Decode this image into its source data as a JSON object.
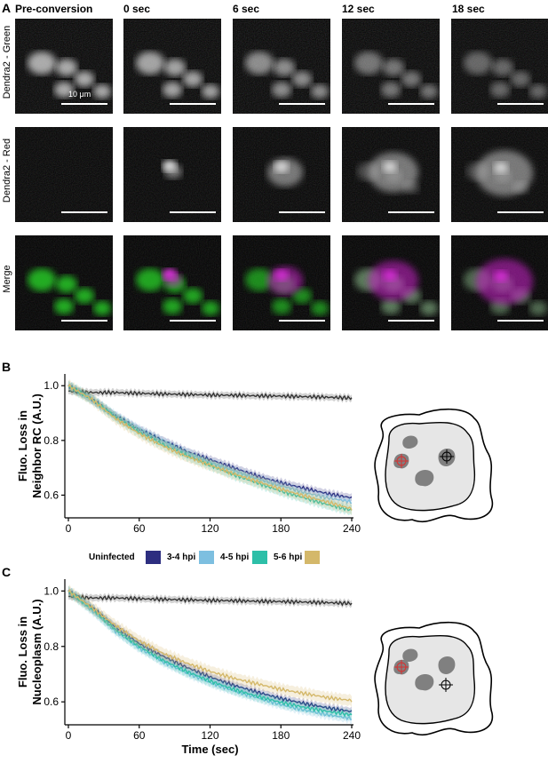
{
  "panel_a": {
    "letter": "A",
    "timepoints": [
      "Pre-conversion",
      "0 sec",
      "6 sec",
      "12 sec",
      "18 sec"
    ],
    "rows": [
      "Dendra2 - Green",
      "Dendra2 - Red",
      "Merge"
    ],
    "scale_label": "10 μm"
  },
  "panel_b": {
    "letter": "B"
  },
  "panel_c": {
    "letter": "C"
  },
  "legend": {
    "entries": [
      {
        "label": "Uninfected",
        "color": "#333333"
      },
      {
        "label": "3-4 hpi",
        "color": "#2d2e80"
      },
      {
        "label": "4-5 hpi",
        "color": "#7dbfe0"
      },
      {
        "label": "5-6 hpi",
        "color": "#2dbfa8"
      },
      {
        "label": "",
        "color": "#d4b86a"
      }
    ]
  },
  "chart_data": [
    {
      "type": "line",
      "panel": "B",
      "ylabel": "Fluo. Loss in Neighbor RC (A.U.)",
      "xlabel": "",
      "xlim": [
        0,
        240
      ],
      "ylim": [
        0.53,
        1.03
      ],
      "xticks": [
        0,
        60,
        120,
        180,
        240
      ],
      "yticks": [
        0.6,
        0.8,
        1.0
      ],
      "x": [
        0,
        20,
        40,
        60,
        80,
        100,
        120,
        140,
        160,
        180,
        200,
        220,
        240
      ],
      "series": [
        {
          "name": "Uninfected",
          "color": "#333333",
          "values": [
            0.98,
            0.975,
            0.975,
            0.972,
            0.97,
            0.968,
            0.966,
            0.965,
            0.963,
            0.962,
            0.96,
            0.958,
            0.955
          ]
        },
        {
          "name": "3-4 hpi",
          "color": "#2d2e80",
          "values": [
            1.0,
            0.95,
            0.89,
            0.84,
            0.8,
            0.76,
            0.73,
            0.7,
            0.67,
            0.645,
            0.625,
            0.605,
            0.59
          ]
        },
        {
          "name": "4-5 hpi",
          "color": "#7dbfe0",
          "values": [
            1.0,
            0.95,
            0.89,
            0.84,
            0.795,
            0.755,
            0.72,
            0.69,
            0.66,
            0.635,
            0.61,
            0.59,
            0.575
          ]
        },
        {
          "name": "5-6 hpi",
          "color": "#2dbfa8",
          "values": [
            1.0,
            0.95,
            0.885,
            0.83,
            0.785,
            0.745,
            0.71,
            0.675,
            0.645,
            0.615,
            0.59,
            0.565,
            0.545
          ]
        },
        {
          "name": "",
          "color": "#d4b86a",
          "values": [
            1.0,
            0.95,
            0.88,
            0.825,
            0.78,
            0.742,
            0.71,
            0.678,
            0.65,
            0.622,
            0.597,
            0.574,
            0.55
          ]
        }
      ]
    },
    {
      "type": "line",
      "panel": "C",
      "ylabel": "Fluo. Loss in Nucleoplasm (A.U.)",
      "xlabel": "Time (sec)",
      "xlim": [
        0,
        240
      ],
      "ylim": [
        0.53,
        1.03
      ],
      "xticks": [
        0,
        60,
        120,
        180,
        240
      ],
      "yticks": [
        0.6,
        0.8,
        1.0
      ],
      "x": [
        0,
        20,
        40,
        60,
        80,
        100,
        120,
        140,
        160,
        180,
        200,
        220,
        240
      ],
      "series": [
        {
          "name": "Uninfected",
          "color": "#333333",
          "values": [
            0.98,
            0.975,
            0.975,
            0.972,
            0.97,
            0.968,
            0.966,
            0.965,
            0.963,
            0.962,
            0.96,
            0.958,
            0.955
          ]
        },
        {
          "name": "3-4 hpi",
          "color": "#2d2e80",
          "values": [
            1.0,
            0.94,
            0.87,
            0.81,
            0.765,
            0.725,
            0.69,
            0.66,
            0.635,
            0.612,
            0.594,
            0.578,
            0.565
          ]
        },
        {
          "name": "4-5 hpi",
          "color": "#7dbfe0",
          "values": [
            1.0,
            0.93,
            0.855,
            0.795,
            0.745,
            0.705,
            0.67,
            0.64,
            0.615,
            0.59,
            0.57,
            0.553,
            0.54
          ]
        },
        {
          "name": "5-6 hpi",
          "color": "#2dbfa8",
          "values": [
            1.0,
            0.935,
            0.86,
            0.8,
            0.75,
            0.71,
            0.675,
            0.645,
            0.62,
            0.598,
            0.58,
            0.565,
            0.553
          ]
        },
        {
          "name": "",
          "color": "#d4b86a",
          "values": [
            1.0,
            0.94,
            0.875,
            0.82,
            0.775,
            0.74,
            0.71,
            0.685,
            0.665,
            0.645,
            0.63,
            0.615,
            0.605
          ]
        }
      ]
    }
  ]
}
